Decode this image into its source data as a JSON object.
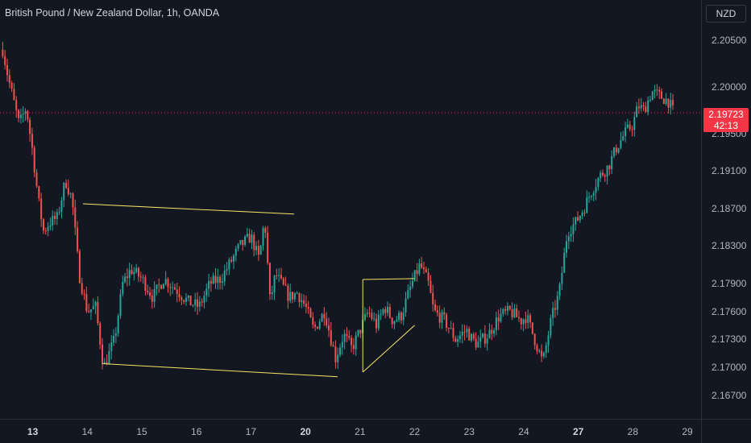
{
  "header": {
    "title": "British Pound / New Zealand Dollar, 1h, OANDA",
    "currency_button": "NZD"
  },
  "chart_data": {
    "type": "candlestick",
    "instrument": "British Pound / New Zealand Dollar",
    "interval": "1h",
    "source": "OANDA",
    "ylim": [
      2.1645,
      2.2093
    ],
    "y_ticks": [
      "2.20500",
      "2.20000",
      "2.19500",
      "2.19100",
      "2.18700",
      "2.18300",
      "2.17900",
      "2.17600",
      "2.17300",
      "2.17000",
      "2.16700"
    ],
    "x_ticks": [
      {
        "label": "13",
        "x": 0.0,
        "bold": true
      },
      {
        "label": "14",
        "x": 1.0,
        "bold": false
      },
      {
        "label": "15",
        "x": 2.0,
        "bold": false
      },
      {
        "label": "16",
        "x": 3.0,
        "bold": false
      },
      {
        "label": "17",
        "x": 4.0,
        "bold": false
      },
      {
        "label": "20",
        "x": 5.0,
        "bold": true
      },
      {
        "label": "21",
        "x": 6.0,
        "bold": false
      },
      {
        "label": "22",
        "x": 7.0,
        "bold": false
      },
      {
        "label": "23",
        "x": 8.0,
        "bold": false
      },
      {
        "label": "24",
        "x": 9.0,
        "bold": false
      },
      {
        "label": "27",
        "x": 10.0,
        "bold": true
      },
      {
        "label": "28",
        "x": 11.0,
        "bold": false
      },
      {
        "label": "29",
        "x": 12.0,
        "bold": false
      }
    ],
    "x_range": [
      -0.6,
      12.25
    ],
    "last_price": 2.19723,
    "last_price_label": "2.19723",
    "countdown": "42:13",
    "up_color": "#26a69a",
    "down_color": "#ef5350",
    "price_line_color": "#f23645",
    "series_close_anchors": [
      [
        -0.55,
        2.204
      ],
      [
        -0.45,
        2.201
      ],
      [
        -0.35,
        2.1985
      ],
      [
        -0.25,
        2.196
      ],
      [
        -0.12,
        2.1978
      ],
      [
        0.0,
        2.193
      ],
      [
        0.1,
        2.188
      ],
      [
        0.2,
        2.1845
      ],
      [
        0.3,
        2.1855
      ],
      [
        0.45,
        2.186
      ],
      [
        0.6,
        2.19
      ],
      [
        0.72,
        2.188
      ],
      [
        0.85,
        2.18
      ],
      [
        1.0,
        2.176
      ],
      [
        1.15,
        2.1765
      ],
      [
        1.3,
        2.17
      ],
      [
        1.5,
        2.173
      ],
      [
        1.65,
        2.179
      ],
      [
        1.8,
        2.1805
      ],
      [
        2.0,
        2.1795
      ],
      [
        2.2,
        2.1775
      ],
      [
        2.4,
        2.1795
      ],
      [
        2.6,
        2.1785
      ],
      [
        2.85,
        2.177
      ],
      [
        3.05,
        2.1765
      ],
      [
        3.25,
        2.179
      ],
      [
        3.45,
        2.1795
      ],
      [
        3.6,
        2.181
      ],
      [
        3.8,
        2.183
      ],
      [
        4.0,
        2.184
      ],
      [
        4.15,
        2.1815
      ],
      [
        4.25,
        2.186
      ],
      [
        4.35,
        2.177
      ],
      [
        4.45,
        2.18
      ],
      [
        4.55,
        2.179
      ],
      [
        4.7,
        2.1775
      ],
      [
        4.85,
        2.178
      ],
      [
        5.0,
        2.1765
      ],
      [
        5.15,
        2.174
      ],
      [
        5.35,
        2.176
      ],
      [
        5.55,
        2.171
      ],
      [
        5.7,
        2.1735
      ],
      [
        5.85,
        2.172
      ],
      [
        6.0,
        2.174
      ],
      [
        6.15,
        2.176
      ],
      [
        6.3,
        2.1745
      ],
      [
        6.45,
        2.1765
      ],
      [
        6.6,
        2.175
      ],
      [
        6.75,
        2.1755
      ],
      [
        6.95,
        2.179
      ],
      [
        7.1,
        2.181
      ],
      [
        7.25,
        2.179
      ],
      [
        7.35,
        2.176
      ],
      [
        7.55,
        2.175
      ],
      [
        7.75,
        2.173
      ],
      [
        7.95,
        2.174
      ],
      [
        8.05,
        2.173
      ],
      [
        8.15,
        2.1725
      ],
      [
        8.35,
        2.1735
      ],
      [
        8.55,
        2.1755
      ],
      [
        8.75,
        2.176
      ],
      [
        8.95,
        2.175
      ],
      [
        9.05,
        2.1755
      ],
      [
        9.2,
        2.173
      ],
      [
        9.35,
        2.1705
      ],
      [
        9.5,
        2.175
      ],
      [
        9.65,
        2.178
      ],
      [
        9.8,
        2.1845
      ],
      [
        9.95,
        2.1855
      ],
      [
        10.1,
        2.187
      ],
      [
        10.25,
        2.189
      ],
      [
        10.4,
        2.1905
      ],
      [
        10.55,
        2.1915
      ],
      [
        10.7,
        2.1935
      ],
      [
        10.85,
        2.195
      ],
      [
        11.0,
        2.196
      ],
      [
        11.1,
        2.198
      ],
      [
        11.2,
        2.1975
      ],
      [
        11.35,
        2.1995
      ],
      [
        11.5,
        2.199
      ],
      [
        11.65,
        2.1985
      ],
      [
        11.75,
        2.1972
      ]
    ],
    "drawings": [
      {
        "from": [
          0.92,
          2.1875
        ],
        "to": [
          4.79,
          2.1864
        ],
        "color": "#f5e663"
      },
      {
        "from": [
          1.27,
          2.1704
        ],
        "to": [
          5.59,
          2.169
        ],
        "color": "#f5e663"
      },
      {
        "from": [
          6.05,
          2.1794
        ],
        "to": [
          7.0,
          2.1795
        ],
        "color": "#f5e663"
      },
      {
        "from": [
          6.05,
          2.1794
        ],
        "to": [
          6.05,
          2.1695
        ],
        "color": "#f5e663"
      },
      {
        "from": [
          6.05,
          2.1695
        ],
        "to": [
          7.0,
          2.1745
        ],
        "color": "#f5e663"
      }
    ]
  }
}
